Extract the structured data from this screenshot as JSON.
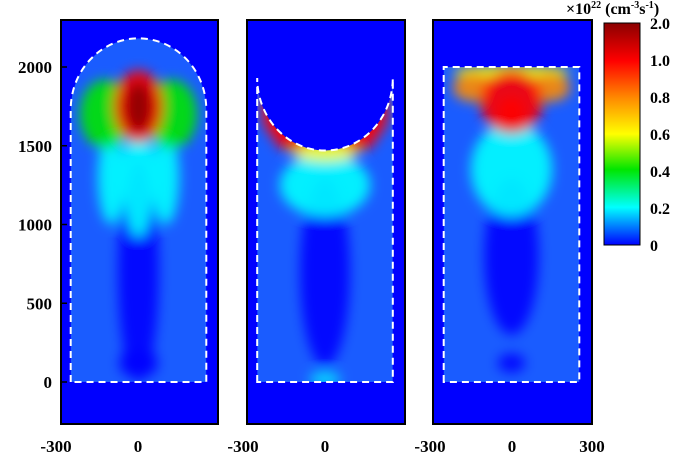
{
  "chart_data": {
    "type": "heatmap",
    "title": "",
    "xlabel": "",
    "ylabel": "",
    "xlim": [
      -300,
      300
    ],
    "ylim": [
      -250,
      2300
    ],
    "xticks": [
      "-300",
      "0",
      "300"
    ],
    "xticks_shared": [
      "-300",
      "0",
      "-300",
      "0",
      "-300",
      "0",
      "300"
    ],
    "yticks": [
      "0",
      "500",
      "1000",
      "1500",
      "2000"
    ],
    "ytick_values": [
      0,
      500,
      1000,
      1500,
      2000
    ],
    "colorbar": {
      "unit_prefix": "×10",
      "unit_exponent": "22",
      "unit_rest": " (cm",
      "unit_sup1": "-3",
      "unit_mid": "s",
      "unit_sup2": "-1",
      "unit_end": ")",
      "labels": [
        "2.0",
        "1.0",
        "0.8",
        "0.6",
        "0.4",
        "0.2",
        "0"
      ],
      "colors": [
        "#8b0000",
        "#ff0000",
        "#ff8c00",
        "#ffff00",
        "#00e600",
        "#00ffff",
        "#0000ff"
      ]
    },
    "panels": [
      {
        "name": "dome-top",
        "outline": "rectangle with semicircular top (radius 270, center at y=1730)",
        "hotspots": [
          {
            "x": 0,
            "y": 1750,
            "value": 2.0,
            "rx": 55,
            "ry": 160
          },
          {
            "x": 0,
            "y": 1750,
            "value": 1.2,
            "rx": 110,
            "ry": 230
          },
          {
            "x": -150,
            "y": 1700,
            "value": 0.45,
            "rx": 110,
            "ry": 220
          },
          {
            "x": 150,
            "y": 1700,
            "value": 0.45,
            "rx": 110,
            "ry": 220
          },
          {
            "x": 0,
            "y": 1300,
            "value": 0.35,
            "rx": 70,
            "ry": 380
          },
          {
            "x": -120,
            "y": 1300,
            "value": 0.25,
            "rx": 60,
            "ry": 300
          },
          {
            "x": 120,
            "y": 1300,
            "value": 0.25,
            "rx": 60,
            "ry": 300
          },
          {
            "x": 0,
            "y": 700,
            "value": 0.15,
            "rx": 90,
            "ry": 700
          },
          {
            "x": -40,
            "y": 120,
            "value": 0.18,
            "rx": 45,
            "ry": 80
          },
          {
            "x": 40,
            "y": 120,
            "value": 0.18,
            "rx": 45,
            "ry": 80
          }
        ]
      },
      {
        "name": "concave-top",
        "outline": "rectangle with concave semicircular cut at top (radius 270, center at y=1930)",
        "hotspots": [
          {
            "x": -220,
            "y": 1720,
            "value": 1.4,
            "rx": 60,
            "ry": 160
          },
          {
            "x": 220,
            "y": 1720,
            "value": 1.4,
            "rx": 60,
            "ry": 160
          },
          {
            "x": -150,
            "y": 1560,
            "value": 1.0,
            "rx": 80,
            "ry": 90
          },
          {
            "x": 150,
            "y": 1560,
            "value": 1.0,
            "rx": 80,
            "ry": 90
          },
          {
            "x": 0,
            "y": 1470,
            "value": 0.6,
            "rx": 150,
            "ry": 70
          },
          {
            "x": 0,
            "y": 1250,
            "value": 0.3,
            "rx": 200,
            "ry": 200
          },
          {
            "x": 0,
            "y": 700,
            "value": 0.12,
            "rx": 110,
            "ry": 600
          },
          {
            "x": 0,
            "y": 20,
            "value": 0.25,
            "rx": 70,
            "ry": 35
          }
        ]
      },
      {
        "name": "flat-top",
        "outline": "rectangle with flat top at y=2000",
        "hotspots": [
          {
            "x": 0,
            "y": 1720,
            "value": 1.8,
            "rx": 60,
            "ry": 90
          },
          {
            "x": 0,
            "y": 1780,
            "value": 1.0,
            "rx": 140,
            "ry": 200
          },
          {
            "x": -170,
            "y": 1870,
            "value": 0.9,
            "rx": 90,
            "ry": 90
          },
          {
            "x": 170,
            "y": 1870,
            "value": 0.9,
            "rx": 90,
            "ry": 90
          },
          {
            "x": 0,
            "y": 1970,
            "value": 0.7,
            "rx": 260,
            "ry": 40
          },
          {
            "x": 0,
            "y": 1350,
            "value": 0.3,
            "rx": 180,
            "ry": 300
          },
          {
            "x": 0,
            "y": 800,
            "value": 0.14,
            "rx": 120,
            "ry": 500
          },
          {
            "x": 0,
            "y": 120,
            "value": 0.15,
            "rx": 60,
            "ry": 60
          }
        ]
      }
    ]
  }
}
